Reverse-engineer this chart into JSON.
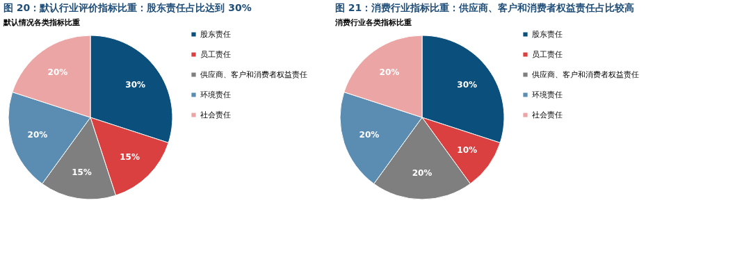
{
  "chart_data": [
    {
      "type": "pie",
      "title": "图 20：默认行业评价指标比重：股东责任占比达到 30%",
      "subtitle": "默认情况各类指标比重",
      "categories": [
        "股东责任",
        "员工责任",
        "供应商、客户和消费者权益责任",
        "环境责任",
        "社会责任"
      ],
      "values": [
        30,
        15,
        15,
        20,
        20
      ],
      "colors": [
        "#0b4f7c",
        "#d9403f",
        "#7f7f7f",
        "#5b8db3",
        "#eba5a5"
      ],
      "value_labels": [
        "30%",
        "15%",
        "15%",
        "20%",
        "20%"
      ],
      "legend": "right"
    },
    {
      "type": "pie",
      "title": "图 21：消费行业指标比重：供应商、客户和消费者权益责任占比较高",
      "subtitle": "消费行业各类指标比重",
      "categories": [
        "股东责任",
        "员工责任",
        "供应商、客户和消费者权益责任",
        "环境责任",
        "社会责任"
      ],
      "values": [
        30,
        10,
        20,
        20,
        20
      ],
      "colors": [
        "#0b4f7c",
        "#d9403f",
        "#7f7f7f",
        "#5b8db3",
        "#eba5a5"
      ],
      "value_labels": [
        "30%",
        "10%",
        "20%",
        "20%",
        "20%"
      ],
      "legend": "right"
    }
  ]
}
